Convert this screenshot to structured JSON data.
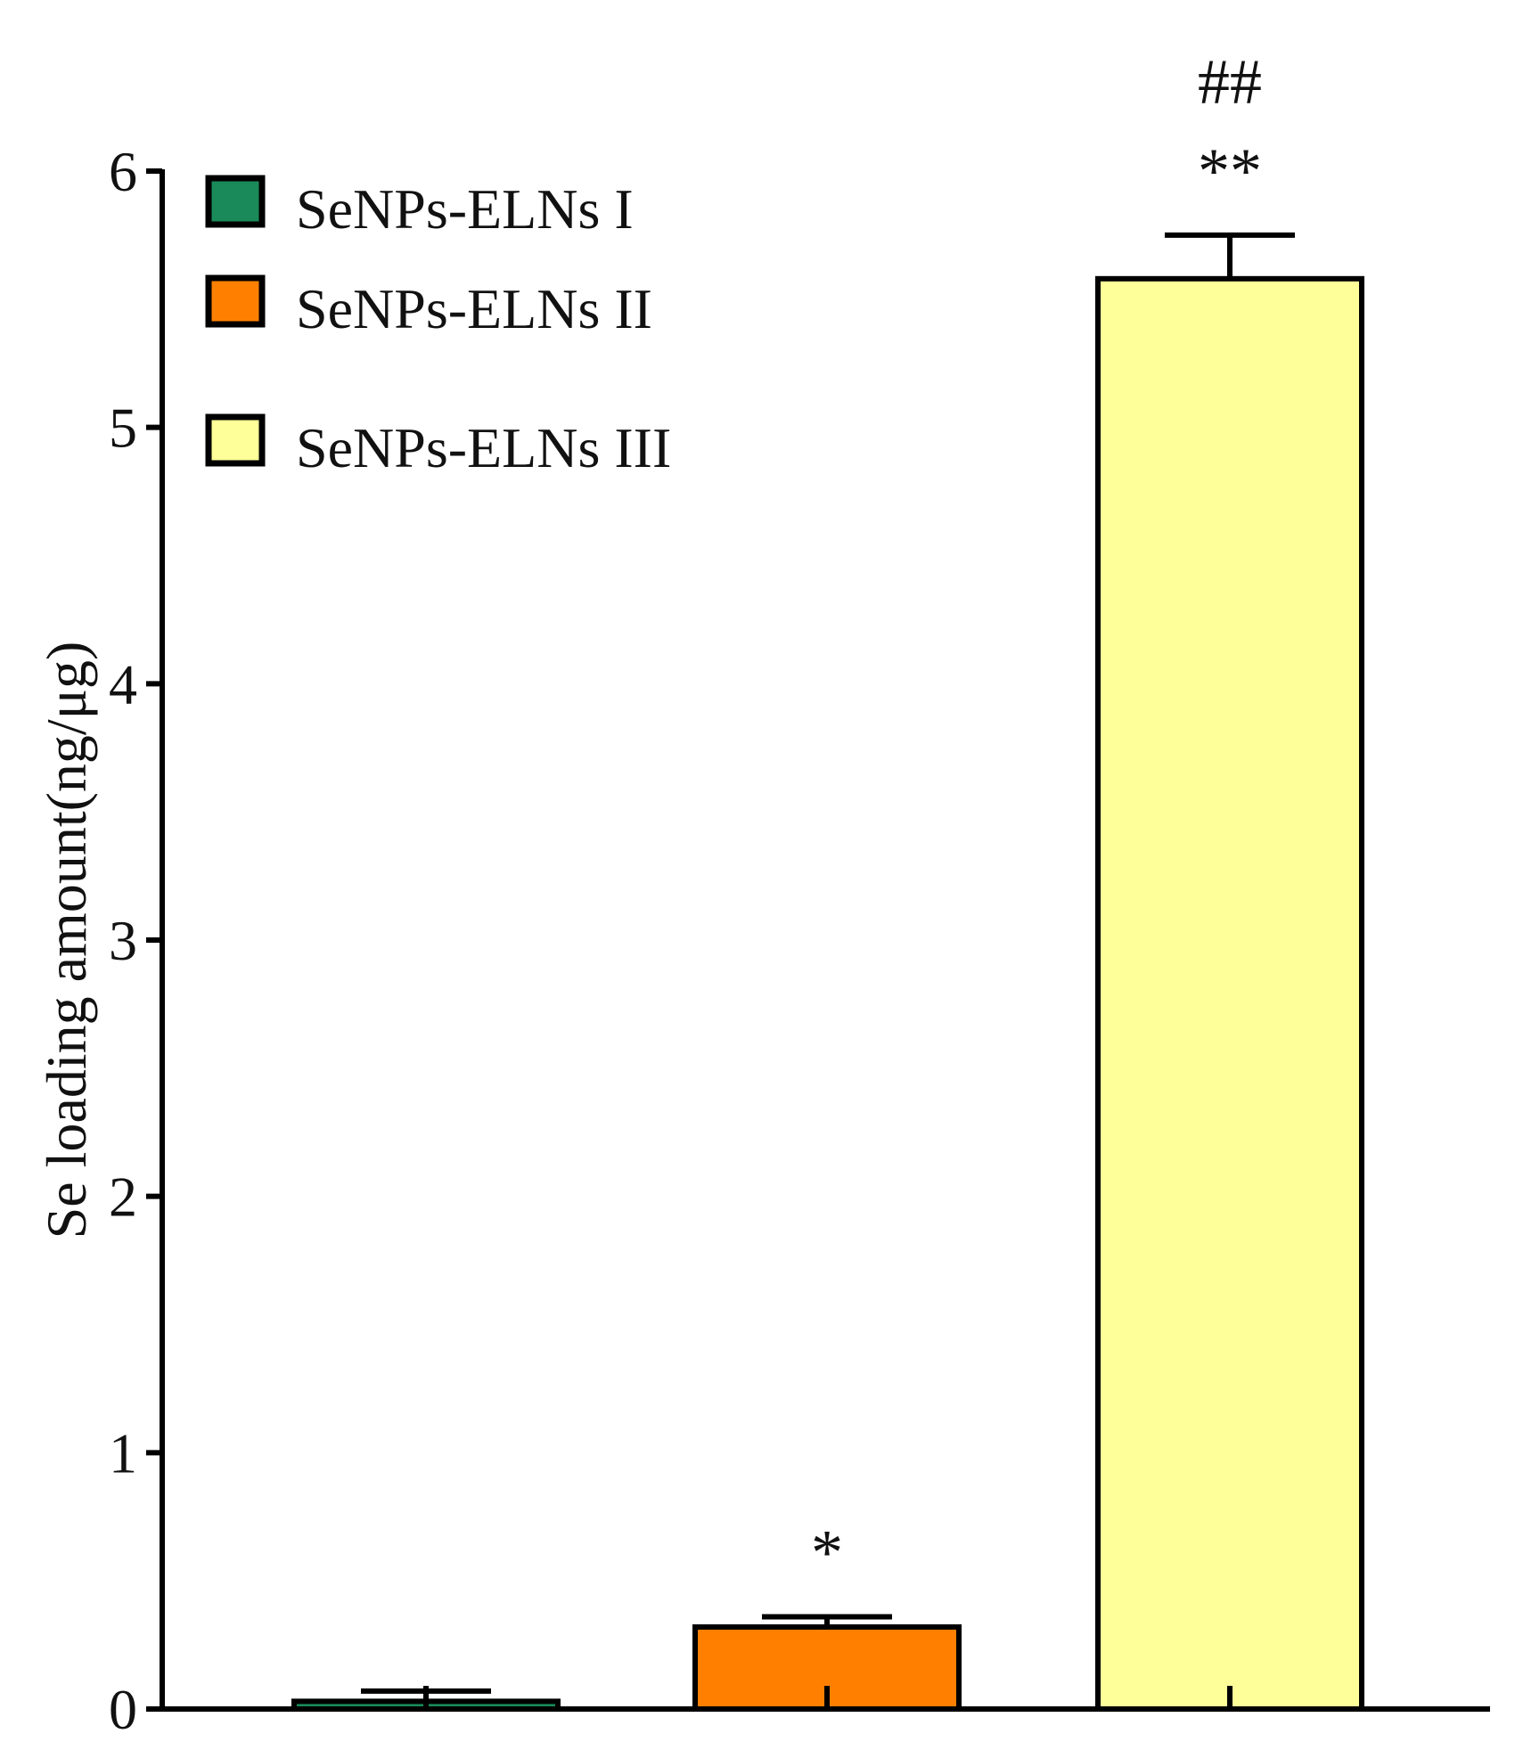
{
  "chart_data": {
    "type": "bar",
    "categories": [
      "SeNPs-ELNs I",
      "SeNPs-ELNs II",
      "SeNPs-ELNs III"
    ],
    "series": [
      {
        "values": [
          0.03,
          0.32,
          5.58
        ],
        "errors": [
          0.04,
          0.04,
          0.17
        ],
        "colors": [
          "#1a8a5a",
          "#ff8000",
          "#ffff99"
        ]
      }
    ],
    "annotations": [
      {
        "category": "SeNPs-ELNs I",
        "text": ""
      },
      {
        "category": "SeNPs-ELNs II",
        "text": "*"
      },
      {
        "category": "SeNPs-ELNs III",
        "text": "**",
        "text2": "##"
      }
    ],
    "ylabel": "Se loading amount(ng/μg)",
    "xlabel": "",
    "title": "",
    "ylim": [
      0,
      6
    ],
    "yticks": [
      "0",
      "1",
      "2",
      "3",
      "4",
      "5",
      "6"
    ],
    "legend": {
      "position": "top-left",
      "entries": [
        "SeNPs-ELNs I",
        "SeNPs-ELNs II",
        "SeNPs-ELNs III"
      ]
    },
    "grid": false
  }
}
